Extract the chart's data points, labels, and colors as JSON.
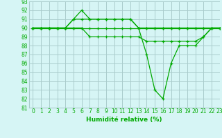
{
  "title": "",
  "xlabel": "Humidité relative (%)",
  "ylabel": "",
  "bg_color": "#d6f5f5",
  "grid_color": "#aacccc",
  "line_color": "#00aa00",
  "xlim": [
    -0.5,
    23
  ],
  "ylim": [
    81,
    93
  ],
  "yticks": [
    81,
    82,
    83,
    84,
    85,
    86,
    87,
    88,
    89,
    90,
    91,
    92,
    93
  ],
  "xticks": [
    0,
    1,
    2,
    3,
    4,
    5,
    6,
    7,
    8,
    9,
    10,
    11,
    12,
    13,
    14,
    15,
    16,
    17,
    18,
    19,
    20,
    21,
    22,
    23
  ],
  "series": [
    [
      90,
      90,
      90,
      90,
      90,
      91,
      92,
      91,
      91,
      91,
      91,
      91,
      91,
      90,
      90,
      90,
      90,
      90,
      90,
      90,
      90,
      90,
      90,
      90
    ],
    [
      90,
      90,
      90,
      90,
      90,
      91,
      91,
      91,
      91,
      91,
      91,
      91,
      91,
      90,
      87,
      83,
      82,
      86,
      88,
      88,
      88,
      89,
      90,
      90
    ],
    [
      90,
      90,
      90,
      90,
      90,
      90,
      90,
      90,
      90,
      90,
      90,
      90,
      90,
      90,
      90,
      90,
      90,
      90,
      90,
      90,
      90,
      90,
      90,
      90
    ],
    [
      90,
      90,
      90,
      90,
      90,
      90,
      90,
      89,
      89,
      89,
      89,
      89,
      89,
      89,
      88.5,
      88.5,
      88.5,
      88.5,
      88.5,
      88.5,
      88.5,
      89,
      90,
      90
    ]
  ]
}
